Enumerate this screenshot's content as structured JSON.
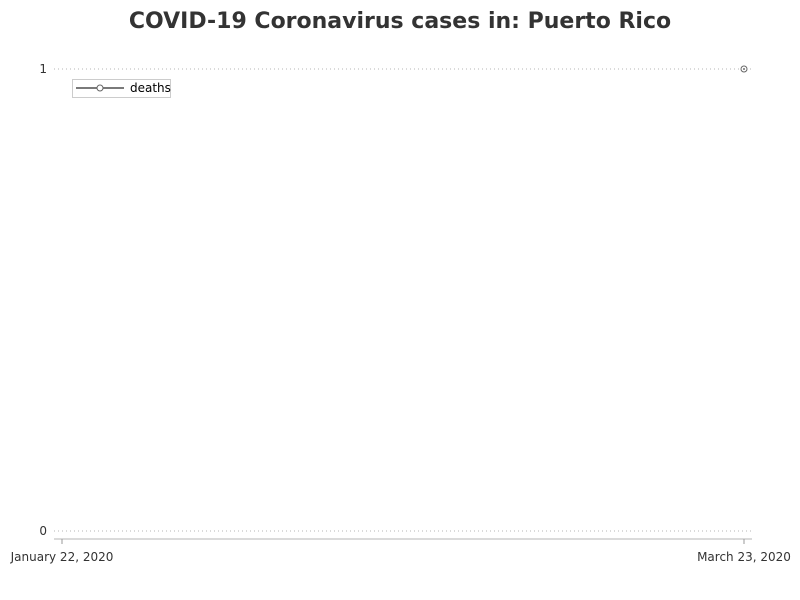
{
  "chart_data": {
    "type": "line",
    "title": "COVID-19 Coronavirus cases in: Puerto Rico",
    "xlabel": "",
    "ylabel": "",
    "x_ticks": [
      "January 22, 2020",
      "March 23, 2020"
    ],
    "y_ticks": [
      0,
      1
    ],
    "ylim": [
      0,
      1
    ],
    "xlim": [
      "2020-01-22",
      "2020-03-23"
    ],
    "grid": true,
    "legend_position": "top-left",
    "series": [
      {
        "name": "deaths",
        "color": "#7a7a7a",
        "marker": "circle-dot",
        "points": [
          {
            "x": "2020-03-23",
            "y": 1
          }
        ]
      }
    ]
  }
}
